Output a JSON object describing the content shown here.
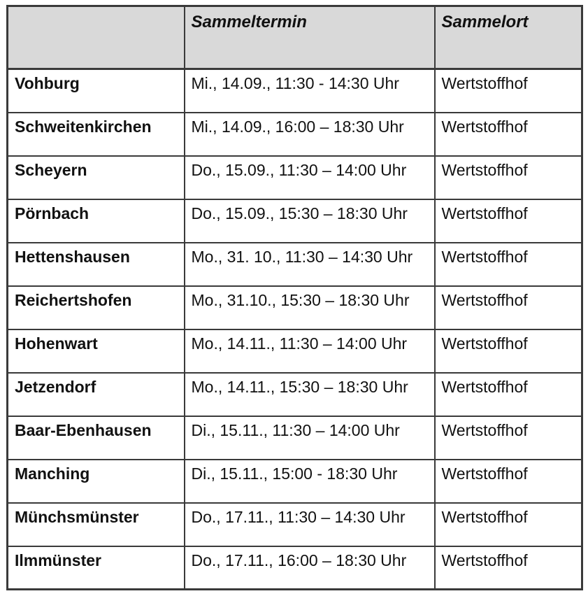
{
  "table": {
    "title_semantic": "Sammeltermine Wertstoffhof",
    "colors": {
      "header_bg": "#d9d9d9",
      "border": "#3a3a3a",
      "text": "#111111",
      "row_bg": "#ffffff"
    },
    "columns": {
      "municipality_label": "",
      "termin_label": "Sammeltermin",
      "ort_label": "Sammelort"
    },
    "rows": [
      {
        "municipality": "Vohburg",
        "termin": "Mi., 14.09., 11:30 - 14:30 Uhr",
        "ort": "Wertstoffhof"
      },
      {
        "municipality": "Schweitenkirchen",
        "termin": "Mi., 14.09., 16:00 – 18:30 Uhr",
        "ort": "Wertstoffhof"
      },
      {
        "municipality": "Scheyern",
        "termin": "Do., 15.09., 11:30 – 14:00 Uhr",
        "ort": "Wertstoffhof"
      },
      {
        "municipality": "Pörnbach",
        "termin": "Do., 15.09., 15:30 – 18:30 Uhr",
        "ort": "Wertstoffhof"
      },
      {
        "municipality": "Hettenshausen",
        "termin": "Mo., 31. 10., 11:30 – 14:30 Uhr",
        "ort": "Wertstoffhof"
      },
      {
        "municipality": "Reichertshofen",
        "termin": "Mo., 31.10., 15:30 – 18:30 Uhr",
        "ort": "Wertstoffhof"
      },
      {
        "municipality": "Hohenwart",
        "termin": "Mo., 14.11., 11:30 – 14:00 Uhr",
        "ort": "Wertstoffhof"
      },
      {
        "municipality": "Jetzendorf",
        "termin": "Mo., 14.11., 15:30 – 18:30 Uhr",
        "ort": "Wertstoffhof"
      },
      {
        "municipality": "Baar-Ebenhausen",
        "termin": "Di., 15.11., 11:30 – 14:00 Uhr",
        "ort": "Wertstoffhof"
      },
      {
        "municipality": "Manching",
        "termin": "Di., 15.11., 15:00 - 18:30 Uhr",
        "ort": "Wertstoffhof"
      },
      {
        "municipality": "Münchsmünster",
        "termin": "Do., 17.11., 11:30 – 14:30 Uhr",
        "ort": "Wertstoffhof"
      },
      {
        "municipality": "Ilmmünster",
        "termin": "Do., 17.11., 16:00 – 18:30 Uhr",
        "ort": "Wertstoffhof"
      }
    ]
  }
}
